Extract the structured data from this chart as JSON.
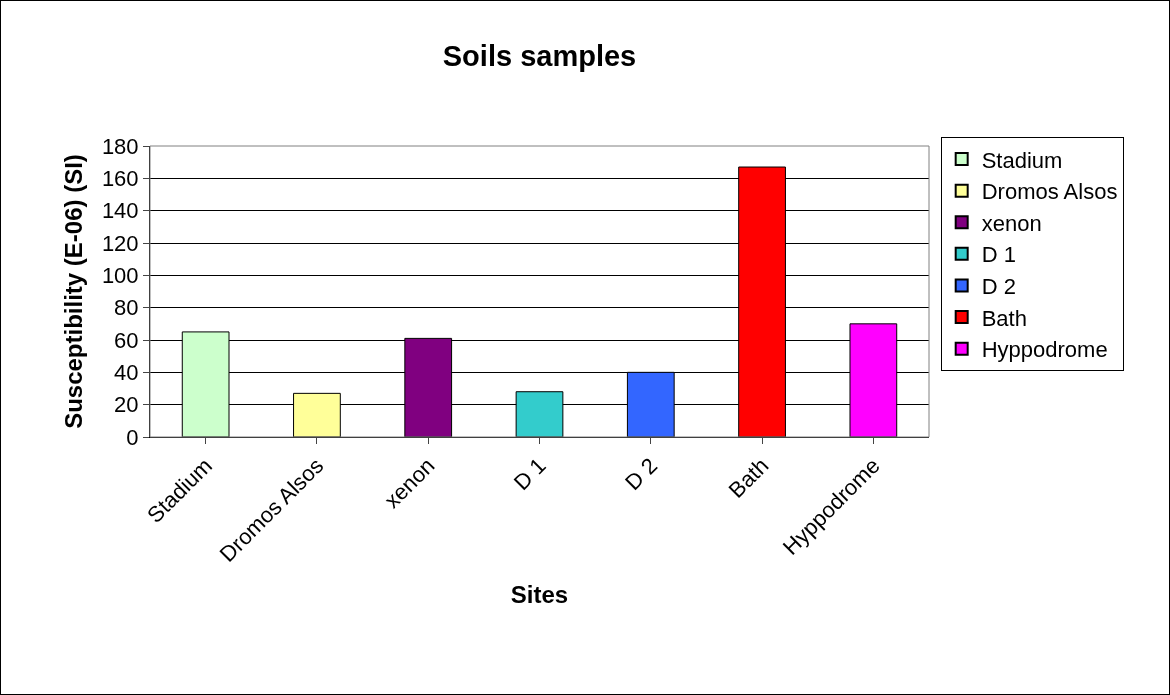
{
  "chart_data": {
    "type": "bar",
    "title": "Soils samples",
    "xlabel": "Sites",
    "ylabel": "Susceptibility (E-06) (SI)",
    "categories": [
      "Stadium",
      "Dromos Alsos",
      "xenon",
      "D 1",
      "D 2",
      "Bath",
      "Hyppodrome"
    ],
    "series": [
      {
        "name": "Stadium",
        "color": "#ccffcc",
        "values": [
          65,
          null,
          null,
          null,
          null,
          null,
          null
        ]
      },
      {
        "name": "Dromos Alsos",
        "color": "#ffff99",
        "values": [
          null,
          27,
          null,
          null,
          null,
          null,
          null
        ]
      },
      {
        "name": "xenon",
        "color": "#800080",
        "values": [
          null,
          null,
          61,
          null,
          null,
          null,
          null
        ]
      },
      {
        "name": "D 1",
        "color": "#33cccc",
        "values": [
          null,
          null,
          null,
          28,
          null,
          null,
          null
        ]
      },
      {
        "name": "D 2",
        "color": "#3366ff",
        "values": [
          null,
          null,
          null,
          null,
          40,
          null,
          null
        ]
      },
      {
        "name": "Bath",
        "color": "#ff0000",
        "values": [
          null,
          null,
          null,
          null,
          null,
          167,
          null
        ]
      },
      {
        "name": "Hyppodrome",
        "color": "#ff00ff",
        "values": [
          null,
          null,
          null,
          null,
          null,
          null,
          70
        ]
      }
    ],
    "ylim": [
      0,
      180
    ],
    "yticks": [
      0,
      20,
      40,
      60,
      80,
      100,
      120,
      140,
      160,
      180
    ],
    "grid": "y",
    "legend": "right"
  }
}
